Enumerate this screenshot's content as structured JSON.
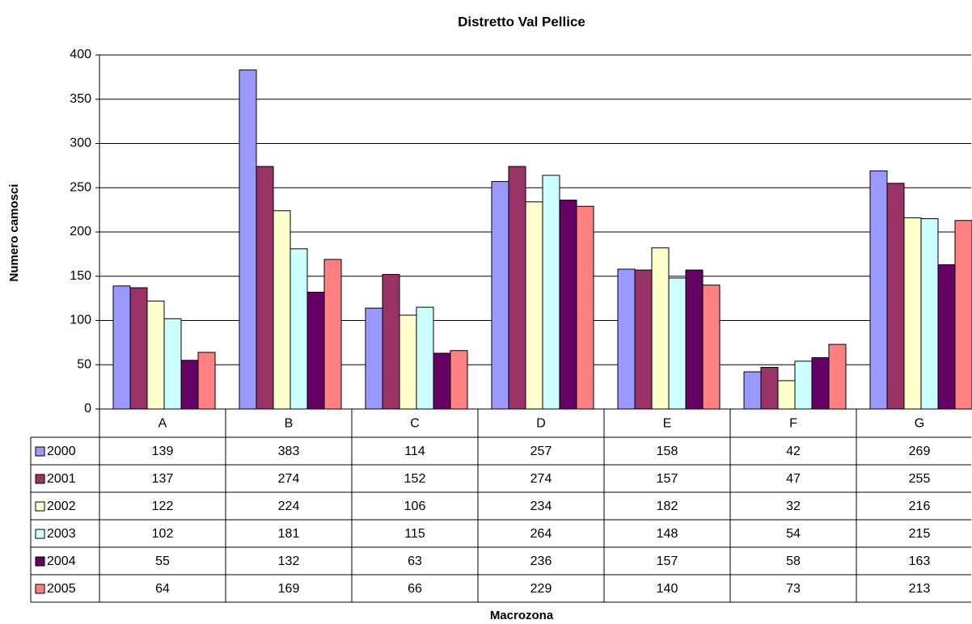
{
  "chart_data": {
    "type": "bar",
    "title": "Distretto Val Pellice",
    "x_label": "Macrozona",
    "y_label": "Numero camosci",
    "categories": [
      "A",
      "B",
      "C",
      "D",
      "E",
      "F",
      "G"
    ],
    "series": [
      {
        "name": "2000",
        "color": "#9999ff",
        "values": [
          139,
          383,
          114,
          257,
          158,
          42,
          269
        ]
      },
      {
        "name": "2001",
        "color": "#993366",
        "values": [
          137,
          274,
          152,
          274,
          157,
          47,
          255
        ]
      },
      {
        "name": "2002",
        "color": "#ffffcc",
        "values": [
          122,
          224,
          106,
          234,
          182,
          32,
          216
        ]
      },
      {
        "name": "2003",
        "color": "#ccffff",
        "values": [
          102,
          181,
          115,
          264,
          148,
          54,
          215
        ]
      },
      {
        "name": "2004",
        "color": "#660066",
        "values": [
          55,
          132,
          63,
          236,
          157,
          58,
          163
        ]
      },
      {
        "name": "2005",
        "color": "#ff8080",
        "values": [
          64,
          169,
          66,
          229,
          140,
          73,
          213
        ]
      }
    ],
    "ylim": [
      0,
      400
    ],
    "yticks": [
      0,
      50,
      100,
      150,
      200,
      250,
      300,
      350,
      400
    ],
    "grid": true
  }
}
